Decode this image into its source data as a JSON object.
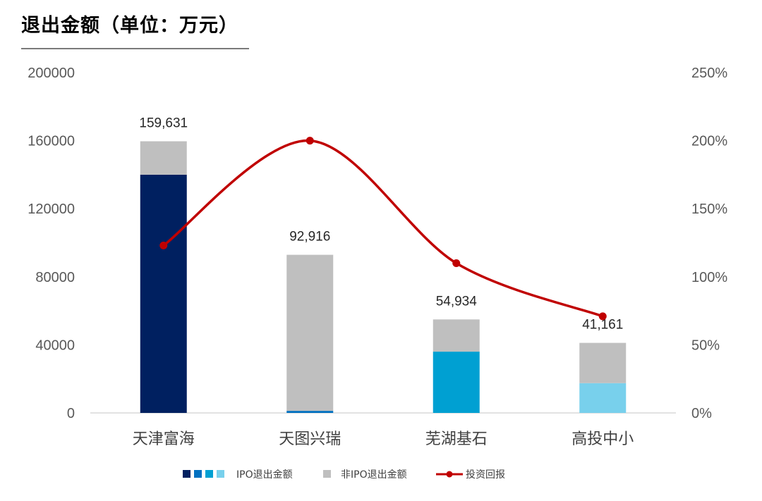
{
  "title": "退出金额（单位：万元）",
  "chart_data": {
    "type": "bar",
    "categories": [
      "天津富海",
      "天图兴瑞",
      "芜湖基石",
      "高投中小"
    ],
    "series": [
      {
        "name": "IPO退出金额",
        "values": [
          140000,
          1200,
          36000,
          17500
        ],
        "colors": [
          "#002060",
          "#0070c0",
          "#00a0d2",
          "#78d0ec"
        ]
      },
      {
        "name": "非IPO退出金额",
        "values": [
          19631,
          91716,
          18934,
          23661
        ],
        "color": "#bfbfbf"
      },
      {
        "name": "投资回报",
        "type": "line",
        "axis": "right",
        "values": [
          1.23,
          2.0,
          1.1,
          0.71
        ],
        "color": "#c00000"
      }
    ],
    "totals": [
      159631,
      92916,
      54934,
      41161
    ],
    "total_labels": [
      "159,631",
      "92,916",
      "54,934",
      "41,161"
    ],
    "left_axis": {
      "ylim": [
        0,
        200000
      ],
      "ticks": [
        "0",
        "40000",
        "80000",
        "120000",
        "160000",
        "200000"
      ]
    },
    "right_axis": {
      "ylim": [
        0,
        2.5
      ],
      "ticks": [
        "0%",
        "50%",
        "100%",
        "150%",
        "200%",
        "250%"
      ]
    },
    "grid": false,
    "legend_position": "bottom",
    "legend": [
      "IPO退出金额",
      "非IPO退出金额",
      "投资回报"
    ]
  }
}
